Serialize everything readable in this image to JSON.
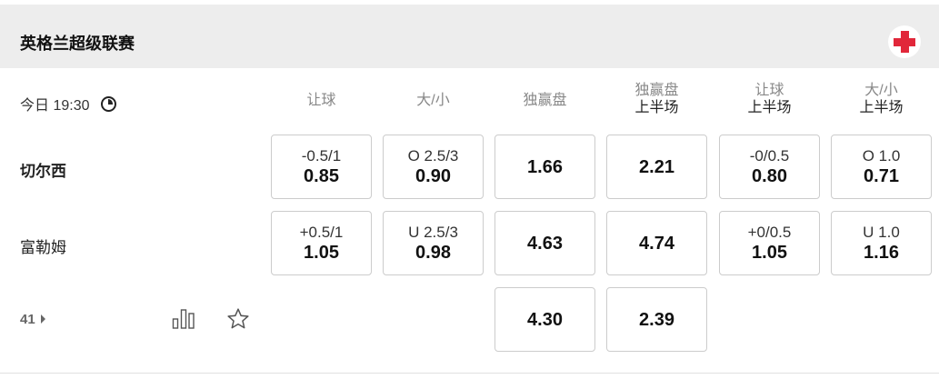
{
  "league": {
    "title": "英格兰超级联赛",
    "flag_icon": "england-flag-icon",
    "flag_color": "#e1273a"
  },
  "match": {
    "time": "今日 19:30",
    "home": "切尔西",
    "away": "富勒姆",
    "markets_count": "41"
  },
  "columns": [
    {
      "label": "让球",
      "sub": ""
    },
    {
      "label": "大/小",
      "sub": ""
    },
    {
      "label": "独赢盘",
      "sub": ""
    },
    {
      "label": "独赢盘",
      "sub": "上半场"
    },
    {
      "label": "让球",
      "sub": "上半场"
    },
    {
      "label": "大/小",
      "sub": "上半场"
    }
  ],
  "rows": [
    [
      {
        "line": "-0.5/1",
        "odds": "0.85"
      },
      {
        "line": "O 2.5/3",
        "odds": "0.90"
      },
      {
        "line": "",
        "odds": "1.66"
      },
      {
        "line": "",
        "odds": "2.21"
      },
      {
        "line": "-0/0.5",
        "odds": "0.80"
      },
      {
        "line": "O 1.0",
        "odds": "0.71"
      }
    ],
    [
      {
        "line": "+0.5/1",
        "odds": "1.05"
      },
      {
        "line": "U 2.5/3",
        "odds": "0.98"
      },
      {
        "line": "",
        "odds": "4.63"
      },
      {
        "line": "",
        "odds": "4.74"
      },
      {
        "line": "+0/0.5",
        "odds": "1.05"
      },
      {
        "line": "U 1.0",
        "odds": "1.16"
      }
    ],
    [
      null,
      null,
      {
        "line": "",
        "odds": "4.30"
      },
      {
        "line": "",
        "odds": "2.39"
      },
      null,
      null
    ]
  ]
}
